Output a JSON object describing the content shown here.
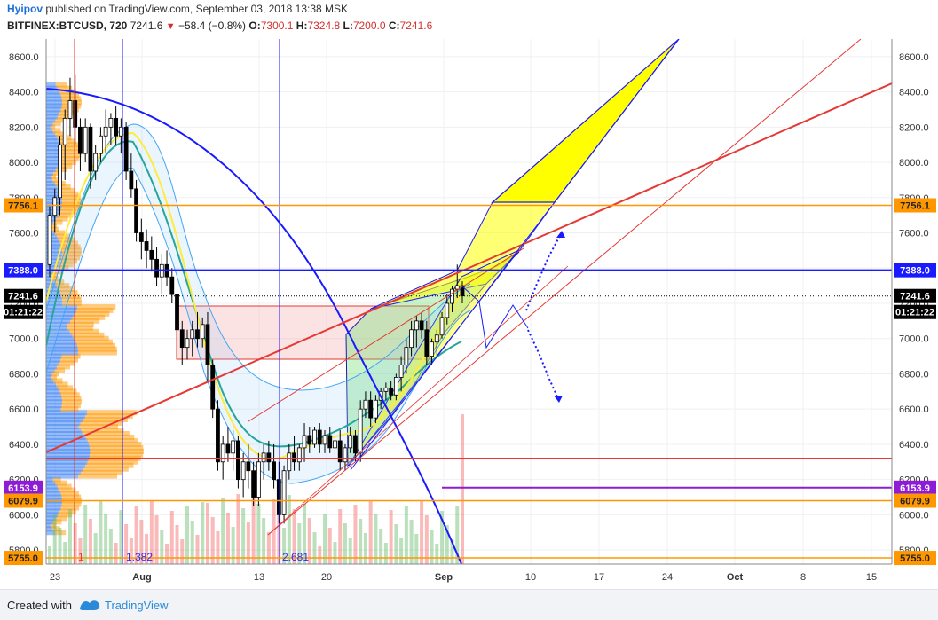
{
  "header": {
    "author": "Hyipov",
    "published": "published on TradingView.com, September 03, 2018 13:38 MSK",
    "symbol": "BITFINEX:BTCUSD, 720",
    "last": "7241.6",
    "change": "−58.4 (−0.8%)",
    "o_label": "O:",
    "o": "7300.1",
    "h_label": "H:",
    "h": "7324.8",
    "l_label": "L:",
    "l": "7200.0",
    "c_label": "C:",
    "c": "7241.6"
  },
  "footer": {
    "created_with": "Created with",
    "brand": "TradingView"
  },
  "chart_data": {
    "type": "candlestick",
    "x_tick_labels": [
      "23",
      "Aug",
      "13",
      "20",
      "Sep",
      "10",
      "17",
      "24",
      "Oct",
      "8",
      "15"
    ],
    "y_ticks": [
      5800,
      6000,
      6200,
      6400,
      6600,
      6800,
      7000,
      7200,
      7400,
      7600,
      7800,
      8000,
      8200,
      8400,
      8600
    ],
    "ylim": [
      5720,
      8700
    ],
    "price_tags": [
      {
        "value": "7756.1",
        "color": "#ff9800",
        "text_color": "#222"
      },
      {
        "value": "7388.0",
        "color": "#1a1aff",
        "text_color": "#fff"
      },
      {
        "value": "7241.6",
        "color": "#000000",
        "text_color": "#fff"
      },
      {
        "value": "01:21:22",
        "color": "#000000",
        "text_color": "#fff"
      },
      {
        "value": "6153.9",
        "color": "#8e1bd6",
        "text_color": "#fff"
      },
      {
        "value": "6079.9",
        "color": "#ff9800",
        "text_color": "#222"
      },
      {
        "value": "5755.0",
        "color": "#ff9800",
        "text_color": "#222"
      }
    ],
    "vertical_line_labels": [
      {
        "text": "1",
        "color": "#e53935"
      },
      {
        "text": "1.382",
        "color": "#2a2aff"
      },
      {
        "text": "2.681",
        "color": "#2a2aff"
      }
    ],
    "horizontal_levels": [
      7756.1,
      7388.0,
      6153.9,
      6079.9,
      5755.0,
      6320
    ],
    "candles": [
      [
        7420,
        7750,
        7350,
        7700
      ],
      [
        7700,
        7850,
        7600,
        7800
      ],
      [
        7800,
        8150,
        7700,
        8100
      ],
      [
        8100,
        8300,
        7900,
        8250
      ],
      [
        8250,
        8480,
        8150,
        8350
      ],
      [
        8350,
        8500,
        8100,
        8200
      ],
      [
        8200,
        8250,
        7950,
        8050
      ],
      [
        8050,
        8250,
        8000,
        8200
      ],
      [
        8200,
        8220,
        7850,
        7950
      ],
      [
        7950,
        8100,
        7900,
        8050
      ],
      [
        8050,
        8200,
        8000,
        8150
      ],
      [
        8150,
        8300,
        8050,
        8200
      ],
      [
        8200,
        8280,
        8100,
        8250
      ],
      [
        8250,
        8320,
        8100,
        8150
      ],
      [
        8150,
        8250,
        8050,
        8200
      ],
      [
        8200,
        8230,
        7900,
        7950
      ],
      [
        7950,
        8050,
        7800,
        7850
      ],
      [
        7850,
        7900,
        7550,
        7600
      ],
      [
        7600,
        7680,
        7450,
        7550
      ],
      [
        7550,
        7620,
        7400,
        7500
      ],
      [
        7500,
        7580,
        7380,
        7450
      ],
      [
        7450,
        7520,
        7300,
        7350
      ],
      [
        7350,
        7480,
        7250,
        7420
      ],
      [
        7420,
        7500,
        7300,
        7350
      ],
      [
        7350,
        7400,
        7200,
        7250
      ],
      [
        7250,
        7300,
        6900,
        7050
      ],
      [
        7050,
        7100,
        6850,
        6950
      ],
      [
        6950,
        7050,
        6880,
        7000
      ],
      [
        7000,
        7100,
        6900,
        7050
      ],
      [
        7050,
        7150,
        6950,
        7000
      ],
      [
        7000,
        7120,
        6950,
        7080
      ],
      [
        7080,
        7150,
        6750,
        6850
      ],
      [
        6850,
        6880,
        6550,
        6600
      ],
      [
        6600,
        6650,
        6250,
        6300
      ],
      [
        6300,
        6450,
        6200,
        6400
      ],
      [
        6400,
        6500,
        6300,
        6350
      ],
      [
        6350,
        6480,
        6250,
        6420
      ],
      [
        6420,
        6450,
        6150,
        6200
      ],
      [
        6200,
        6350,
        6100,
        6300
      ],
      [
        6300,
        6400,
        6150,
        6250
      ],
      [
        6250,
        6300,
        6050,
        6100
      ],
      [
        6100,
        6350,
        6050,
        6300
      ],
      [
        6300,
        6400,
        6200,
        6350
      ],
      [
        6350,
        6420,
        6250,
        6300
      ],
      [
        6300,
        6400,
        6150,
        6200
      ],
      [
        6200,
        6300,
        5950,
        6000
      ],
      [
        6000,
        6280,
        5950,
        6250
      ],
      [
        6250,
        6400,
        6200,
        6350
      ],
      [
        6350,
        6450,
        6250,
        6300
      ],
      [
        6300,
        6400,
        6250,
        6380
      ],
      [
        6380,
        6520,
        6300,
        6450
      ],
      [
        6450,
        6500,
        6350,
        6400
      ],
      [
        6400,
        6500,
        6380,
        6480
      ],
      [
        6480,
        6520,
        6350,
        6400
      ],
      [
        6400,
        6480,
        6350,
        6450
      ],
      [
        6450,
        6500,
        6350,
        6380
      ],
      [
        6380,
        6450,
        6300,
        6420
      ],
      [
        6420,
        6480,
        6250,
        6300
      ],
      [
        6300,
        6400,
        6250,
        6380
      ],
      [
        6380,
        6500,
        6350,
        6450
      ],
      [
        6450,
        6480,
        6300,
        6350
      ],
      [
        6350,
        6650,
        6300,
        6600
      ],
      [
        6600,
        6700,
        6550,
        6650
      ],
      [
        6650,
        6700,
        6500,
        6550
      ],
      [
        6550,
        6680,
        6520,
        6650
      ],
      [
        6650,
        6720,
        6600,
        6700
      ],
      [
        6700,
        6750,
        6650,
        6720
      ],
      [
        6720,
        6760,
        6650,
        6680
      ],
      [
        6680,
        6800,
        6650,
        6780
      ],
      [
        6780,
        6900,
        6700,
        6850
      ],
      [
        6850,
        7000,
        6800,
        6950
      ],
      [
        6950,
        7100,
        6900,
        7050
      ],
      [
        7050,
        7130,
        6950,
        7100
      ],
      [
        7100,
        7150,
        7000,
        7050
      ],
      [
        7050,
        7100,
        6850,
        6900
      ],
      [
        6900,
        7000,
        6850,
        6980
      ],
      [
        6980,
        7050,
        6900,
        7020
      ],
      [
        7020,
        7150,
        7000,
        7120
      ],
      [
        7120,
        7250,
        7080,
        7200
      ],
      [
        7200,
        7300,
        7150,
        7280
      ],
      [
        7280,
        7420,
        7230,
        7300
      ],
      [
        7300,
        7325,
        7200,
        7242
      ]
    ]
  }
}
